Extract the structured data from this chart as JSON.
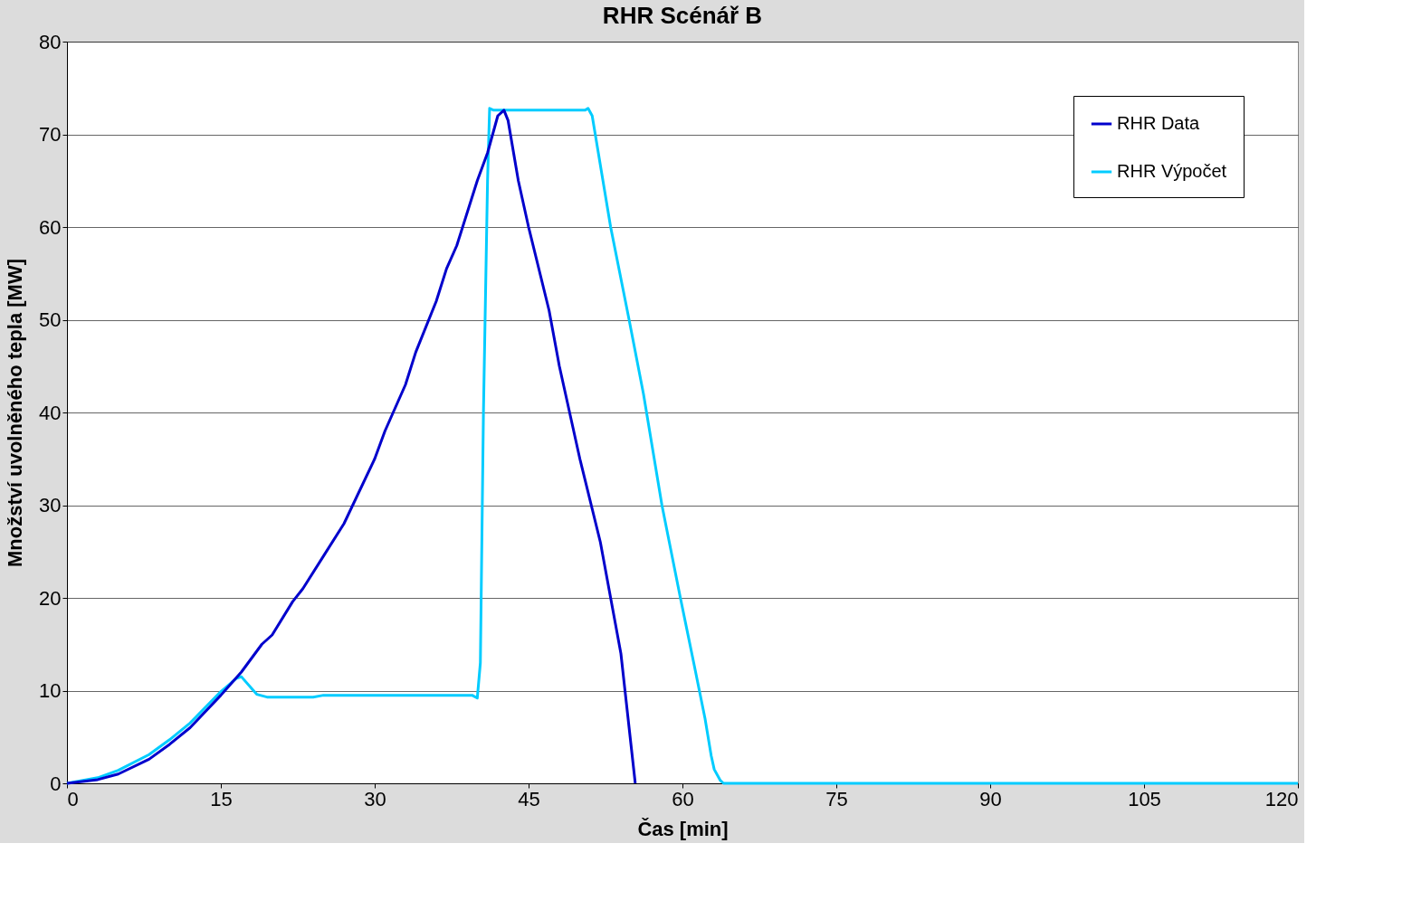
{
  "chart_data": {
    "type": "line",
    "title": "RHR Scénář B",
    "xlabel": "Čas [min]",
    "ylabel": "Množství uvolněného tepla [MW]",
    "xlim": [
      0,
      120
    ],
    "xticks": [
      0,
      15,
      30,
      45,
      60,
      75,
      90,
      105,
      120
    ],
    "ylim": [
      0,
      80
    ],
    "yticks": [
      0,
      10,
      20,
      30,
      40,
      50,
      60,
      70,
      80
    ],
    "grid": "y",
    "legend": "top right",
    "marker": "none",
    "line_style": "solid",
    "series": [
      {
        "name": "RHR Data",
        "color": "#0000cc",
        "x": [
          0,
          3,
          5,
          8,
          10,
          12,
          15,
          17,
          19,
          20,
          22,
          23,
          25,
          27,
          30,
          31,
          33,
          34,
          36,
          37,
          38,
          40,
          41,
          42,
          42.6,
          43,
          44,
          45,
          47,
          48,
          50,
          52,
          54,
          55,
          55.4
        ],
        "values": [
          0,
          0.4,
          1,
          2.6,
          4.2,
          6,
          9.5,
          12,
          15,
          16,
          19.6,
          21,
          24.5,
          28,
          35,
          38,
          43,
          46.5,
          52,
          55.5,
          58,
          65,
          68,
          72,
          72.6,
          71.5,
          65,
          60,
          51,
          45,
          35,
          26,
          14,
          4,
          0
        ]
      },
      {
        "name": "RHR Výpočet",
        "color": "#00ccff",
        "x": [
          0,
          3,
          5,
          8,
          10,
          12,
          15,
          16.5,
          17,
          18.5,
          19.5,
          24,
          25,
          39.5,
          40,
          40.3,
          40.6,
          41,
          41.2,
          41.6,
          50.5,
          50.8,
          51.2,
          53,
          54.8,
          56.2,
          58,
          59.8,
          61.1,
          62.2,
          62.8,
          63.1,
          63.7,
          64,
          120
        ],
        "values": [
          0,
          0.6,
          1.4,
          3.1,
          4.7,
          6.5,
          9.9,
          11.3,
          11.5,
          9.6,
          9.3,
          9.3,
          9.5,
          9.5,
          9.2,
          13,
          40,
          65,
          72.8,
          72.6,
          72.6,
          72.8,
          72,
          60,
          50,
          42,
          30,
          20,
          13,
          7,
          3,
          1.5,
          0.3,
          0,
          0
        ]
      }
    ]
  }
}
